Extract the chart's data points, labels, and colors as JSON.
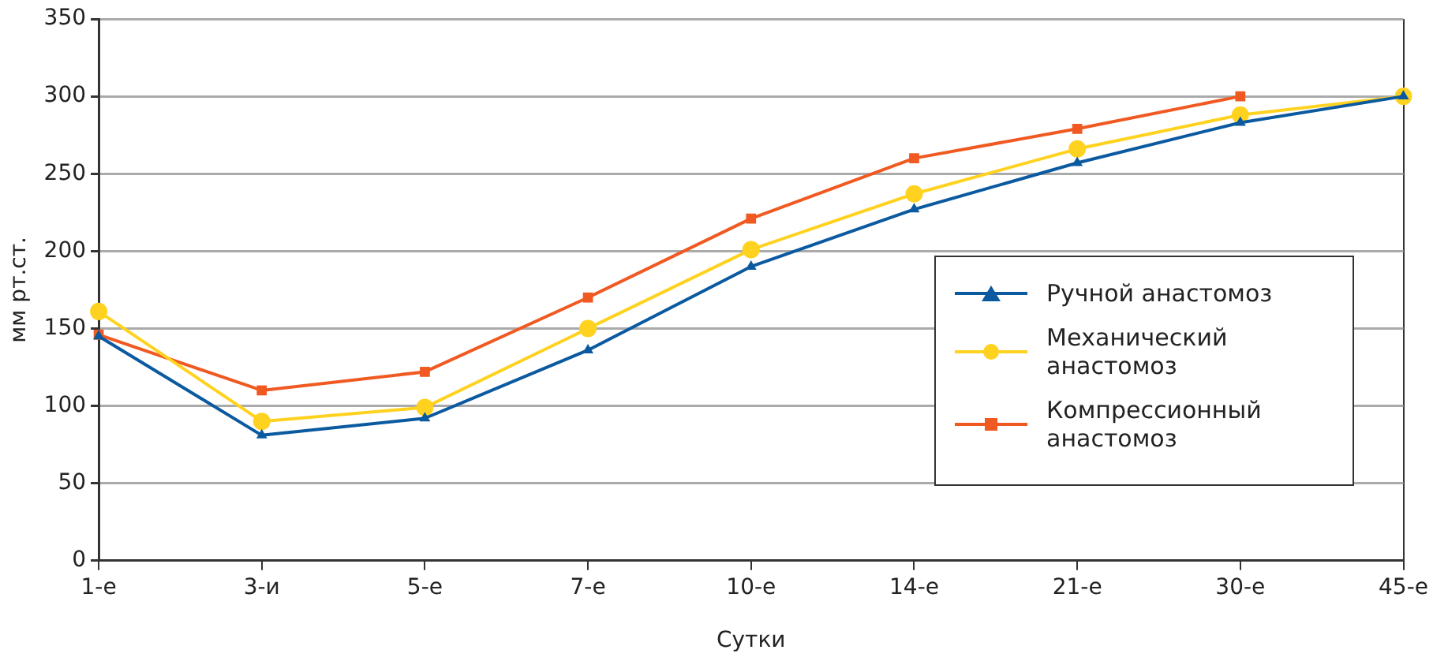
{
  "chart_data": {
    "type": "line",
    "xlabel": "Сутки",
    "ylabel": "мм рт.ст.",
    "categories": [
      "1-е",
      "3-и",
      "5-е",
      "7-е",
      "10-е",
      "14-е",
      "21-е",
      "30-е",
      "45-е"
    ],
    "series": [
      {
        "name": "Ручной анастомоз",
        "color": "#0b5aa0",
        "marker": "triangle",
        "values": [
          145,
          81,
          92,
          136,
          190,
          227,
          257,
          283,
          300
        ]
      },
      {
        "name": "Механический анастомоз",
        "color": "#ffd21f",
        "marker": "circle",
        "values": [
          161,
          90,
          99,
          150,
          201,
          237,
          266,
          288,
          300
        ]
      },
      {
        "name": "Компрессионный анастомоз",
        "color": "#f05a22",
        "marker": "square",
        "values": [
          146,
          110,
          122,
          170,
          221,
          260,
          279,
          300,
          null
        ]
      }
    ],
    "ylim": [
      0,
      350
    ],
    "yticks": [
      0,
      50,
      100,
      150,
      200,
      250,
      300,
      350
    ],
    "grid": "y",
    "legend": "right",
    "line_style": "solid"
  }
}
